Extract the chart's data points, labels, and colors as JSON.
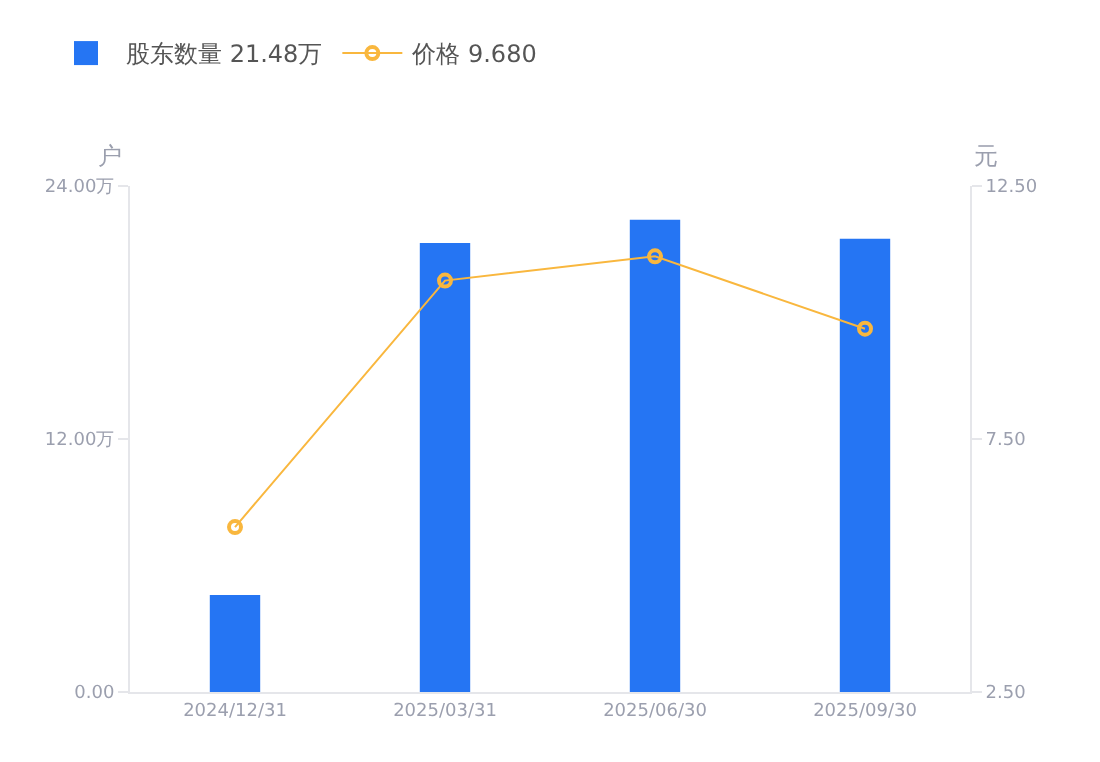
{
  "chart_data": {
    "type": "bar",
    "categories": [
      "2024/12/31",
      "2025/03/31",
      "2025/06/30",
      "2025/09/30"
    ],
    "ylabel": "户",
    "y2label": "元",
    "ylim": [
      0,
      24
    ],
    "yticks": [
      {
        "value": 0,
        "label": "0.00"
      },
      {
        "value": 12,
        "label": "12.00万"
      },
      {
        "value": 24,
        "label": "24.00万"
      }
    ],
    "y2lim": [
      2.5,
      12.5
    ],
    "y2ticks": [
      {
        "value": 2.5,
        "label": "2.50"
      },
      {
        "value": 7.5,
        "label": "7.50"
      },
      {
        "value": 12.5,
        "label": "12.50"
      }
    ],
    "series": [
      {
        "name": "股东数量 21.48万",
        "color": "#2575f3",
        "values": [
          4.6,
          21.3,
          22.4,
          21.5
        ]
      },
      {
        "name": "价格 9.680",
        "type": "line",
        "axis": "y2",
        "color": "#f9b73e",
        "marker": "circle",
        "values": [
          5.76,
          10.63,
          11.11,
          9.68
        ]
      }
    ],
    "grid": false,
    "legend": "top left"
  }
}
